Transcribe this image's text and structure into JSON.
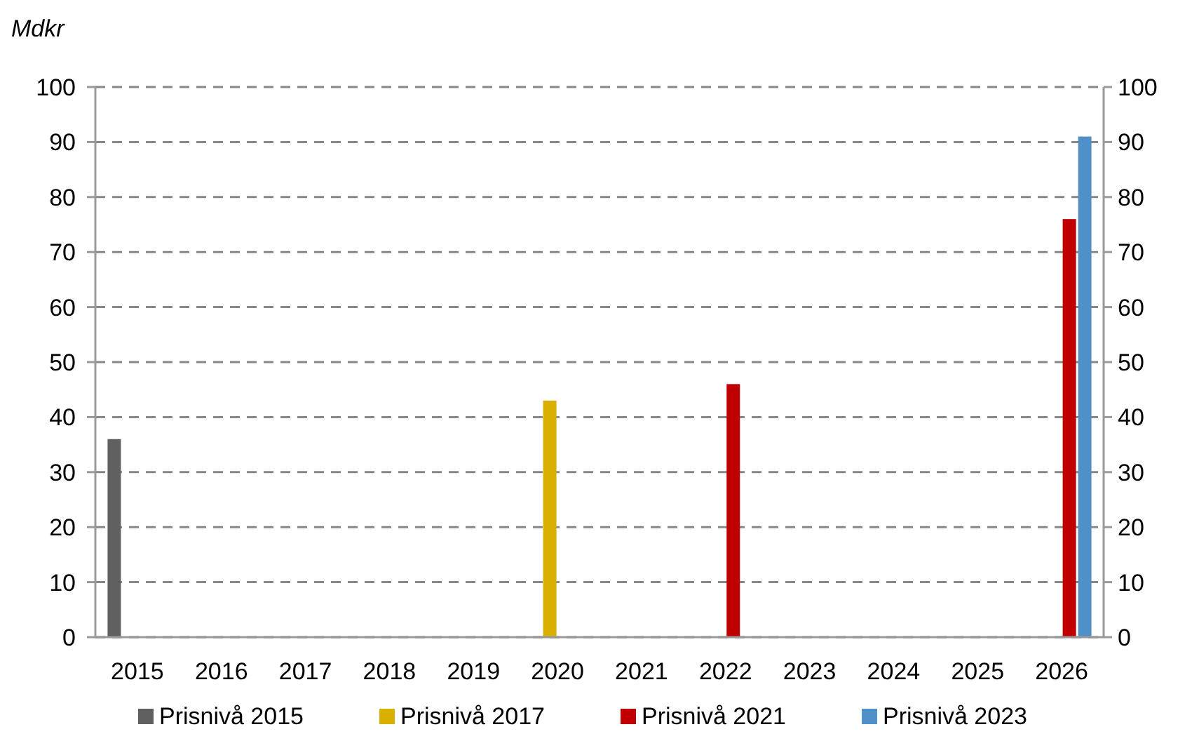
{
  "chart_data": {
    "type": "bar",
    "ylabel": "Mdkr",
    "categories": [
      "2015",
      "2016",
      "2017",
      "2018",
      "2019",
      "2020",
      "2021",
      "2022",
      "2023",
      "2024",
      "2025",
      "2026"
    ],
    "series": [
      {
        "name": "Prisnivå 2015",
        "color": "#606060",
        "values": [
          36,
          null,
          null,
          null,
          null,
          null,
          null,
          null,
          null,
          null,
          null,
          null
        ]
      },
      {
        "name": "Prisnivå 2017",
        "color": "#d9b000",
        "values": [
          null,
          null,
          null,
          null,
          null,
          43,
          null,
          null,
          null,
          null,
          null,
          null
        ]
      },
      {
        "name": "Prisnivå 2021",
        "color": "#c00000",
        "values": [
          null,
          null,
          null,
          null,
          null,
          null,
          null,
          46,
          null,
          null,
          null,
          76
        ]
      },
      {
        "name": "Prisnivå 2023",
        "color": "#4f90c8",
        "values": [
          null,
          null,
          null,
          null,
          null,
          null,
          null,
          null,
          null,
          null,
          null,
          91
        ]
      }
    ],
    "ylim": [
      0,
      100
    ],
    "yticks": [
      0,
      10,
      20,
      30,
      40,
      50,
      60,
      70,
      80,
      90,
      100
    ],
    "y2lim": [
      0,
      100
    ],
    "y2ticks": [
      0,
      10,
      20,
      30,
      40,
      50,
      60,
      70,
      80,
      90,
      100
    ],
    "grid": "y",
    "legend": "bottom"
  }
}
